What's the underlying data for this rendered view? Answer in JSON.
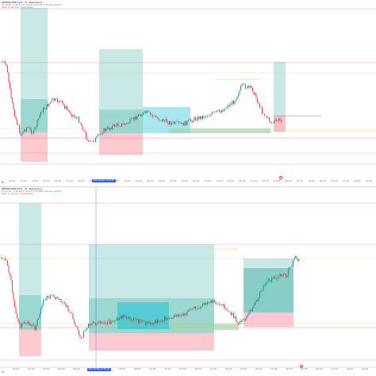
{
  "top_panel": {
    "header_line1": "PEPPERSTONE:US30 · 15 · Pepperstone",
    "header_line2": "Vol 24.8K · O 40,312 H 40,341 L 40,296 C 40,318",
    "header_line3": "Open in new tab · TradingView",
    "header_green": "+0.05%",
    "time_labels": [
      "06:00",
      "12:00",
      "18:00",
      "00:00",
      "06:00",
      "12:00",
      "18:00",
      "00:00",
      "06:00",
      "12:00",
      "18:00",
      "00:00",
      "06:00",
      "12:00",
      "18:00",
      "00:00",
      "06:00",
      "12:00",
      "18:00",
      "00:00",
      "06:00",
      "12:00",
      "18:00",
      "00:00",
      "06:00",
      "12:00",
      "18:00",
      "00:00",
      "06:00",
      "12:00",
      "18:00",
      "00:00"
    ],
    "cursor_time": "Mon 06 May 24  06:30",
    "logo": "TV",
    "flag": "ᐅ"
  },
  "bottom_panel": {
    "header_line1": "PEPPERSTONE:US30 · 15 · Pepperstone",
    "header_line2": "Vol 21.3K · O 40,402 H 40,427 L 40,389 C 40,411",
    "header_line3": "Open in new tab · TradingView",
    "header_green": "+0.03%",
    "time_labels": [
      "06:00",
      "12:00",
      "18:00",
      "00:00",
      "06:00",
      "12:00",
      "18:00",
      "00:00",
      "06:00",
      "12:00",
      "18:00",
      "00:00",
      "06:00",
      "12:00",
      "18:00",
      "00:00",
      "06:00",
      "12:00",
      "18:00",
      "00:00",
      "06:00",
      "12:00",
      "18:00",
      "00:00"
    ],
    "cursor_time": "Mon 06 May 24  06:30",
    "logo": "TV"
  },
  "colors": {
    "up": "#089981",
    "down": "#f23645",
    "profit_zone": "#26a69a",
    "loss_zone": "#f7525f",
    "range_box": "#00bcd4",
    "level_red": "#f23645",
    "level_yellow": "#f5e9a6",
    "level_green": "#a5d6a7",
    "cursor": "#2962ff"
  }
}
